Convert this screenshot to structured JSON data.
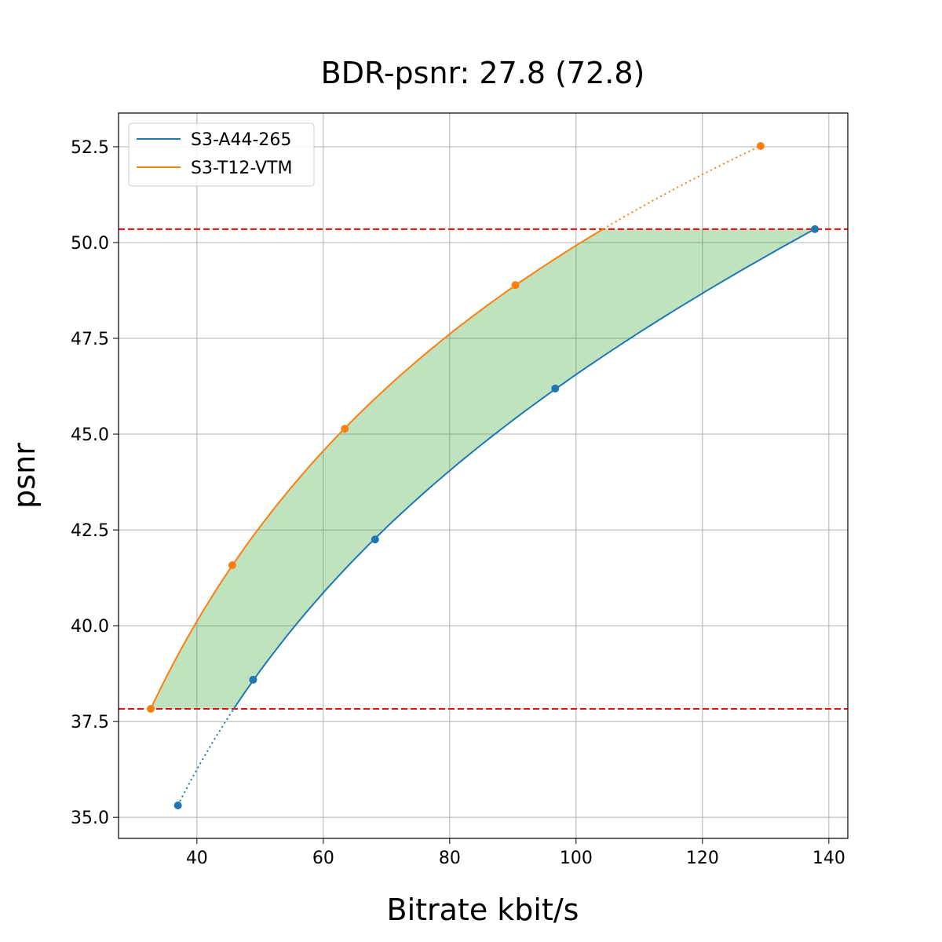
{
  "chart_data": {
    "type": "line",
    "title": "BDR-psnr: 27.8 (72.8)",
    "xlabel": "Bitrate kbit/s",
    "ylabel": "psnr",
    "xlim": [
      27.6,
      143.0
    ],
    "ylim": [
      34.45,
      53.38
    ],
    "xticks": [
      40,
      60,
      80,
      100,
      120,
      140
    ],
    "yticks": [
      "35.0",
      "37.5",
      "40.0",
      "42.5",
      "45.0",
      "47.5",
      "50.0",
      "52.5"
    ],
    "grid": true,
    "legend": "top-left",
    "series": [
      {
        "name": "S3-A44-265",
        "color": "#1f77b4",
        "x": [
          37.0,
          48.9,
          68.2,
          96.7,
          137.8
        ],
        "y": [
          35.31,
          38.59,
          42.25,
          46.19,
          50.35
        ]
      },
      {
        "name": "S3-T12-VTM",
        "color": "#ff7f0e",
        "x": [
          32.7,
          45.6,
          63.4,
          90.4,
          129.2
        ],
        "y": [
          37.83,
          41.58,
          45.14,
          48.89,
          52.52
        ]
      }
    ],
    "reference_lines": [
      {
        "y": 50.35,
        "color": "#ff0000",
        "style": "dashed"
      },
      {
        "y": 37.83,
        "color": "#ff0000",
        "style": "dashed"
      }
    ],
    "fill_color": "#2ca02c"
  }
}
